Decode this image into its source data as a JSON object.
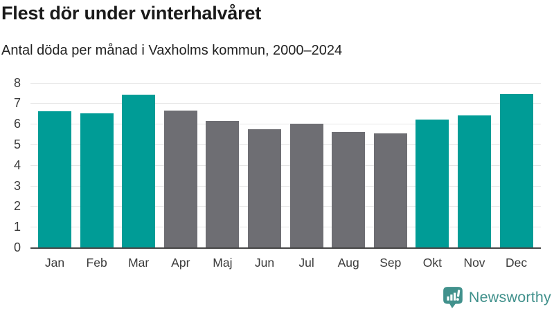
{
  "header": {
    "title": "Flest dör under vinterhalvåret",
    "subtitle": "Antal döda per månad i Vaxholms kommun, 2000–2024"
  },
  "chart_data": {
    "type": "bar",
    "title": "Flest dör under vinterhalvåret",
    "subtitle": "Antal döda per månad i Vaxholms kommun, 2000–2024",
    "categories": [
      "Jan",
      "Feb",
      "Mar",
      "Apr",
      "Maj",
      "Jun",
      "Jul",
      "Aug",
      "Sep",
      "Okt",
      "Nov",
      "Dec"
    ],
    "values": [
      6.6,
      6.5,
      7.4,
      6.65,
      6.15,
      5.75,
      6.0,
      5.6,
      5.55,
      6.2,
      6.4,
      7.45
    ],
    "bar_colors": [
      "teal",
      "teal",
      "teal",
      "gray",
      "gray",
      "gray",
      "gray",
      "gray",
      "gray",
      "teal",
      "teal",
      "teal"
    ],
    "xlabel": "",
    "ylabel": "",
    "ylim": [
      0,
      8
    ],
    "yticks": [
      0,
      1,
      2,
      3,
      4,
      5,
      6,
      7,
      8
    ],
    "grid": true,
    "legend": false
  },
  "colors": {
    "teal": "#009c96",
    "gray": "#6e6e73",
    "brand": "#41918c",
    "gridline": "#e5e5e5",
    "axis_line": "#454545",
    "tick_text": "#3b3b3b"
  },
  "footer": {
    "brand_name": "Newsworthy"
  }
}
